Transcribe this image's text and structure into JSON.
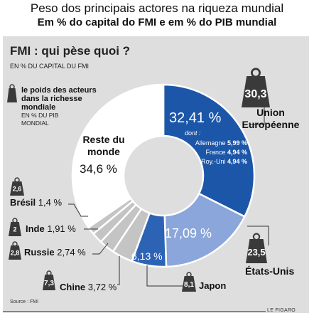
{
  "header": {
    "title": "Peso dos principais actores na riqueza mundial",
    "subtitle": "Em % do capital do FMI e em % do PIB mundial"
  },
  "panel": {
    "title": "FMI : qui pèse quoi ?",
    "subtitle": "EN % DU CAPITAL DU FMI",
    "legend_text": "le poids des acteurs dans la richesse mondiale",
    "legend_sub": "EN % DU PIB MONDIAL",
    "source": "Source : FMI",
    "credit": "LE FIGARO"
  },
  "colors": {
    "ue": "#1c56a8",
    "us": "#8aa6da",
    "japon": "#2d63b5",
    "others": "#c4c4c4",
    "reste": "#ffffff",
    "weight": "#3a3a3a"
  },
  "chart_data": {
    "type": "pie",
    "title": "FMI : qui pèse quoi ?",
    "subtitle": "EN % DU CAPITAL DU FMI",
    "slices": [
      {
        "name": "Union Européenne",
        "value": 32.41,
        "pct_label": "32,41 %",
        "gdp": "30,3"
      },
      {
        "name": "États-Unis",
        "value": 17.09,
        "pct_label": "17,09 %",
        "gdp": "23,5"
      },
      {
        "name": "Japon",
        "value": 6.13,
        "pct_label": "6,13 %",
        "gdp": "8,1"
      },
      {
        "name": "Chine",
        "value": 3.72,
        "pct_label": "3,72 %",
        "gdp": "7,3"
      },
      {
        "name": "Russie",
        "value": 2.74,
        "pct_label": "2,74 %",
        "gdp": "2,8"
      },
      {
        "name": "Inde",
        "value": 1.91,
        "pct_label": "1,91 %",
        "gdp": "2"
      },
      {
        "name": "Brésil",
        "value": 1.4,
        "pct_label": "1,4 %",
        "gdp": "2,6"
      },
      {
        "name": "Reste du monde",
        "value": 34.6,
        "pct_label": "34,6 %"
      }
    ],
    "ue_breakdown": {
      "dont": "dont :",
      "items": [
        {
          "name": "Allemagne",
          "value": "5,99 %"
        },
        {
          "name": "France",
          "value": "4,94 %"
        },
        {
          "name": "Roy.-Uni",
          "value": "4,94 %"
        }
      ]
    },
    "legend": "weight icons show % of world GDP"
  }
}
